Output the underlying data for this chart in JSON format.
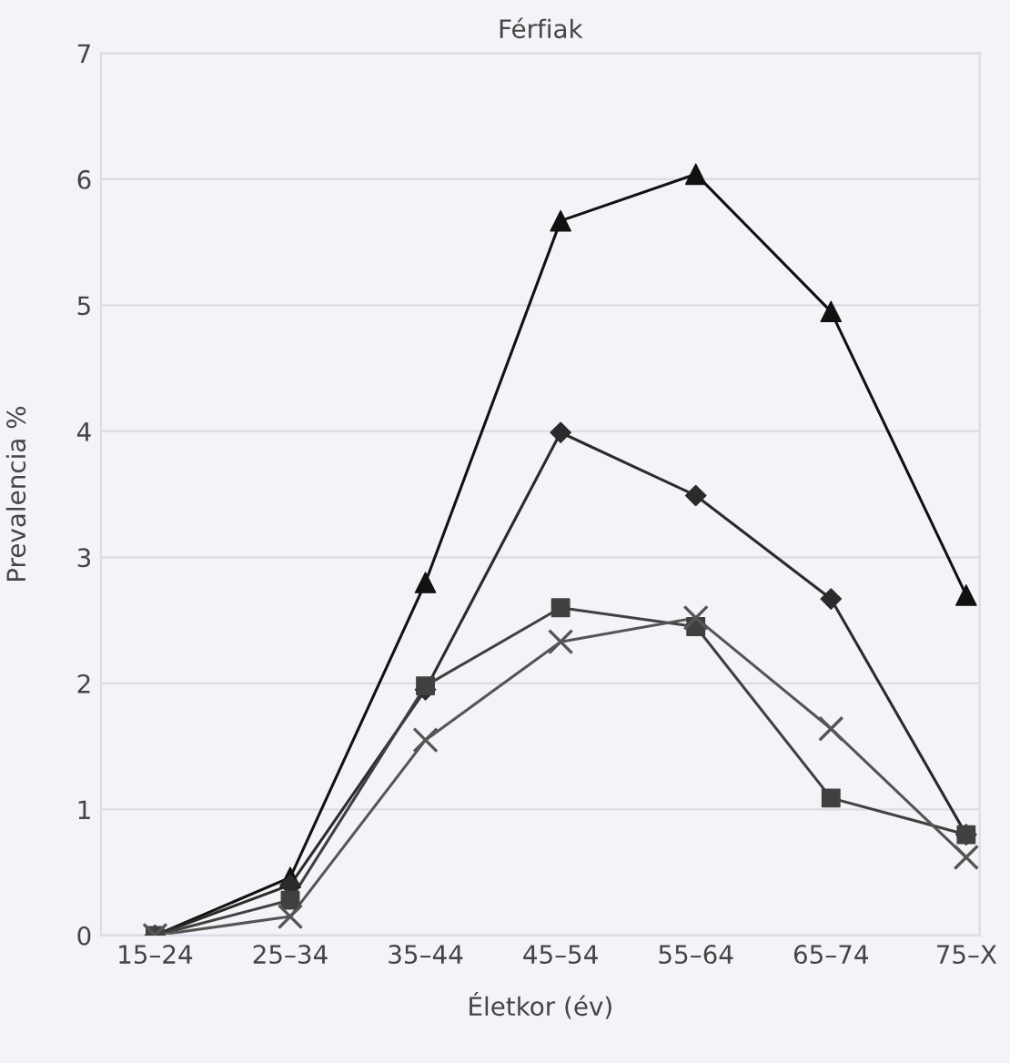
{
  "chart_data": {
    "type": "line",
    "title": "Férfiak",
    "xlabel": "Életkor (év)",
    "ylabel": "Prevalencia %",
    "categories": [
      "15–24",
      "25–34",
      "35–44",
      "45–54",
      "55–64",
      "65–74",
      "75–X"
    ],
    "series": [
      {
        "color": "#111111",
        "marker": "triangle",
        "values": [
          0,
          0.46,
          2.8,
          5.67,
          6.04,
          4.95,
          2.7
        ]
      },
      {
        "color": "#2b2b2b",
        "marker": "diamond",
        "values": [
          0,
          0.4,
          1.95,
          3.99,
          3.49,
          2.67,
          0.8
        ]
      },
      {
        "color": "#404040",
        "marker": "square",
        "values": [
          0,
          0.28,
          1.98,
          2.6,
          2.45,
          1.09,
          0.8
        ]
      },
      {
        "color": "#555555",
        "marker": "cross",
        "values": [
          0,
          0.15,
          1.55,
          2.33,
          2.52,
          1.64,
          0.62
        ]
      }
    ],
    "ylim": [
      0,
      7
    ],
    "yticks": [
      0,
      1,
      2,
      3,
      4,
      5,
      6,
      7
    ],
    "grid": "y",
    "legend": false,
    "line_style": "solid"
  }
}
